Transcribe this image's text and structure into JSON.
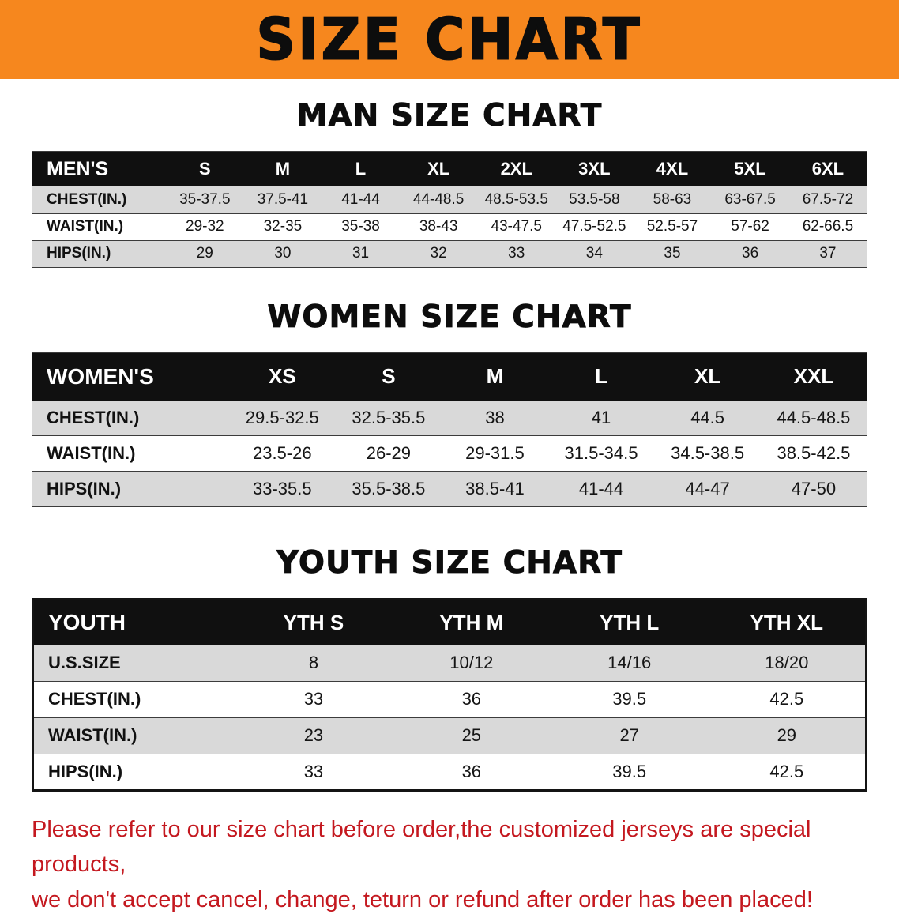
{
  "banner": {
    "title": "SIZE CHART"
  },
  "headings": {
    "men": "MAN SIZE CHART",
    "women": "WOMEN SIZE CHART",
    "youth": "YOUTH SIZE CHART"
  },
  "chart_data": [
    {
      "type": "table",
      "title": "MAN SIZE CHART",
      "columns": [
        "MEN'S",
        "S",
        "M",
        "L",
        "XL",
        "2XL",
        "3XL",
        "4XL",
        "5XL",
        "6XL"
      ],
      "rows": [
        [
          "CHEST(IN.)",
          "35-37.5",
          "37.5-41",
          "41-44",
          "44-48.5",
          "48.5-53.5",
          "53.5-58",
          "58-63",
          "63-67.5",
          "67.5-72"
        ],
        [
          "WAIST(IN.)",
          "29-32",
          "32-35",
          "35-38",
          "38-43",
          "43-47.5",
          "47.5-52.5",
          "52.5-57",
          "57-62",
          "62-66.5"
        ],
        [
          "HIPS(IN.)",
          "29",
          "30",
          "31",
          "32",
          "33",
          "34",
          "35",
          "36",
          "37"
        ]
      ]
    },
    {
      "type": "table",
      "title": "WOMEN SIZE CHART",
      "columns": [
        "WOMEN'S",
        "XS",
        "S",
        "M",
        "L",
        "XL",
        "XXL"
      ],
      "rows": [
        [
          "CHEST(IN.)",
          "29.5-32.5",
          "32.5-35.5",
          "38",
          "41",
          "44.5",
          "44.5-48.5"
        ],
        [
          "WAIST(IN.)",
          "23.5-26",
          "26-29",
          "29-31.5",
          "31.5-34.5",
          "34.5-38.5",
          "38.5-42.5"
        ],
        [
          "HIPS(IN.)",
          "33-35.5",
          "35.5-38.5",
          "38.5-41",
          "41-44",
          "44-47",
          "47-50"
        ]
      ]
    },
    {
      "type": "table",
      "title": "YOUTH SIZE CHART",
      "columns": [
        "YOUTH",
        "YTH S",
        "YTH M",
        "YTH L",
        "YTH XL"
      ],
      "rows": [
        [
          "U.S.SIZE",
          "8",
          "10/12",
          "14/16",
          "18/20"
        ],
        [
          "CHEST(IN.)",
          "33",
          "36",
          "39.5",
          "42.5"
        ],
        [
          "WAIST(IN.)",
          "23",
          "25",
          "27",
          "29"
        ],
        [
          "HIPS(IN.)",
          "33",
          "36",
          "39.5",
          "42.5"
        ]
      ]
    }
  ],
  "note": {
    "line1": "Please refer to our size chart before order,the customized jerseys are special products,",
    "line2": "we don't accept cancel, change, teturn or refund after order has been placed!"
  },
  "colors": {
    "banner_bg": "#f6871e",
    "table_header_bg": "#101010",
    "row_shade": "#d9d9d9",
    "note_red": "#c4181f"
  }
}
